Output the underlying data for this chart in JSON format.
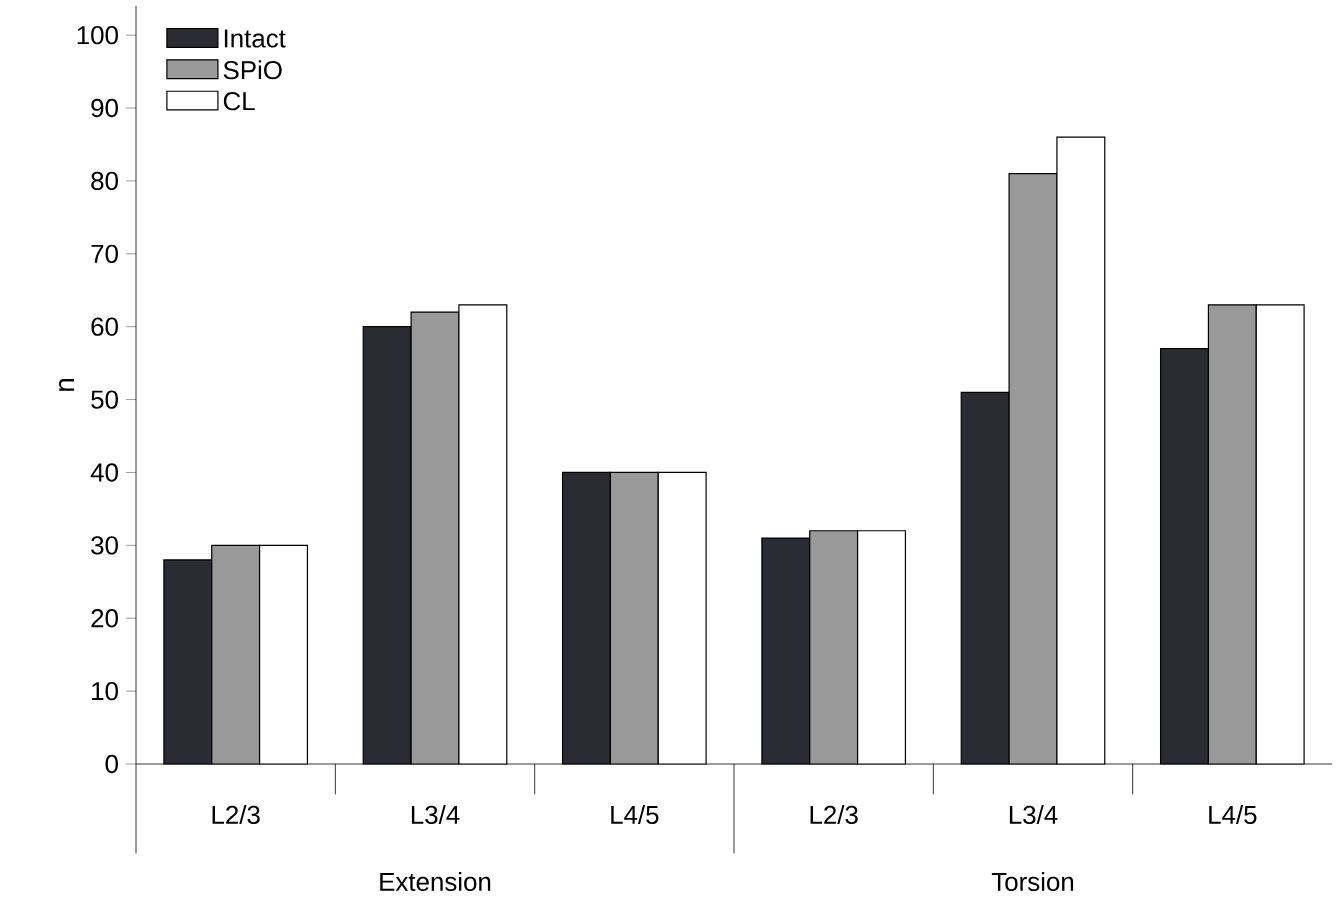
{
  "chart_data": {
    "type": "bar",
    "ylabel": "n",
    "categories": [
      "L2/3",
      "L3/4",
      "L4/5",
      "L2/3",
      "L3/4",
      "L4/5"
    ],
    "series": [
      {
        "name": "Intact",
        "color": "#2b2b33",
        "values": [
          28,
          60,
          40,
          31,
          51,
          57
        ]
      },
      {
        "name": "SPiO",
        "color": "#999999",
        "values": [
          30,
          62,
          40,
          32,
          81,
          63
        ]
      },
      {
        "name": "CL",
        "color": "#ffffff",
        "values": [
          30,
          63,
          40,
          32,
          86,
          63
        ]
      }
    ],
    "ylim": [
      0,
      104
    ],
    "yticks": [
      0,
      10,
      20,
      30,
      40,
      50,
      60,
      70,
      80,
      90,
      100
    ],
    "legend": "top left",
    "annotations": [
      "Extension",
      "Torsion"
    ]
  }
}
